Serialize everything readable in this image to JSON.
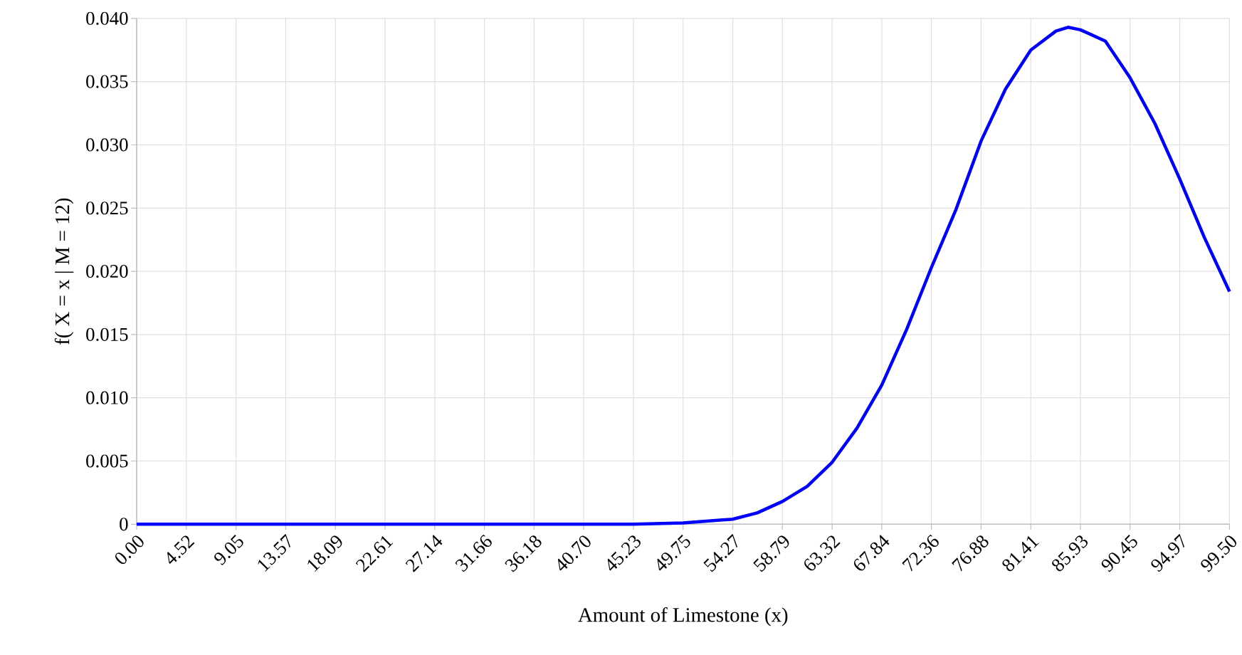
{
  "chart_data": {
    "type": "line",
    "xlabel": "Amount of Limestone (x)",
    "ylabel": "f( X = x | M = 12)",
    "x": [
      0,
      9.05,
      18.09,
      27.14,
      36.18,
      40.7,
      45.23,
      49.75,
      54.27,
      56.5,
      58.79,
      61.05,
      63.32,
      65.58,
      67.84,
      70.1,
      72.36,
      74.6,
      76.88,
      79.1,
      81.41,
      83.7,
      84.8,
      85.93,
      88.2,
      90.45,
      92.7,
      94.97,
      97.2,
      99.5
    ],
    "values": [
      0,
      0,
      0,
      0,
      0,
      0,
      0,
      0.0001,
      0.0004,
      0.0009,
      0.0018,
      0.003,
      0.0049,
      0.0076,
      0.011,
      0.0154,
      0.0203,
      0.0249,
      0.0303,
      0.0344,
      0.0375,
      0.039,
      0.0393,
      0.0391,
      0.0382,
      0.0353,
      0.0317,
      0.0273,
      0.0227,
      0.0184
    ],
    "color": "#0000ff",
    "xlim": [
      0,
      99.5
    ],
    "ylim": [
      0,
      0.04
    ],
    "xticks": [
      {
        "value": 0,
        "label": "0.00"
      },
      {
        "value": 4.52,
        "label": "4.52"
      },
      {
        "value": 9.05,
        "label": "9.05"
      },
      {
        "value": 13.57,
        "label": "13.57"
      },
      {
        "value": 18.09,
        "label": "18.09"
      },
      {
        "value": 22.61,
        "label": "22.61"
      },
      {
        "value": 27.14,
        "label": "27.14"
      },
      {
        "value": 31.66,
        "label": "31.66"
      },
      {
        "value": 36.18,
        "label": "36.18"
      },
      {
        "value": 40.7,
        "label": "40.70"
      },
      {
        "value": 45.23,
        "label": "45.23"
      },
      {
        "value": 49.75,
        "label": "49.75"
      },
      {
        "value": 54.27,
        "label": "54.27"
      },
      {
        "value": 58.79,
        "label": "58.79"
      },
      {
        "value": 63.32,
        "label": "63.32"
      },
      {
        "value": 67.84,
        "label": "67.84"
      },
      {
        "value": 72.36,
        "label": "72.36"
      },
      {
        "value": 76.88,
        "label": "76.88"
      },
      {
        "value": 81.41,
        "label": "81.41"
      },
      {
        "value": 85.93,
        "label": "85.93"
      },
      {
        "value": 90.45,
        "label": "90.45"
      },
      {
        "value": 94.97,
        "label": "94.97"
      },
      {
        "value": 99.5,
        "label": "99.50"
      }
    ],
    "yticks": [
      {
        "value": 0,
        "label": "0"
      },
      {
        "value": 0.005,
        "label": "0.005"
      },
      {
        "value": 0.01,
        "label": "0.010"
      },
      {
        "value": 0.015,
        "label": "0.015"
      },
      {
        "value": 0.02,
        "label": "0.020"
      },
      {
        "value": 0.025,
        "label": "0.025"
      },
      {
        "value": 0.03,
        "label": "0.030"
      },
      {
        "value": 0.035,
        "label": "0.035"
      },
      {
        "value": 0.04,
        "label": "0.040"
      }
    ],
    "grid": true,
    "marker": "none",
    "line_style": "solid"
  }
}
